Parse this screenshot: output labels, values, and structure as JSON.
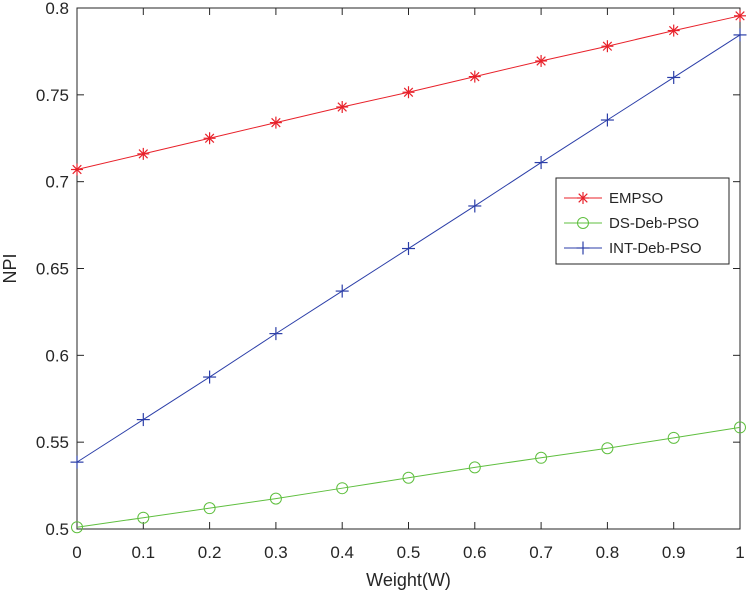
{
  "chart_data": {
    "type": "line",
    "xlabel": "Weight(W)",
    "ylabel": "NPI",
    "xlim": [
      0,
      1
    ],
    "ylim": [
      0.5,
      0.8
    ],
    "x": [
      0,
      0.1,
      0.2,
      0.3,
      0.4,
      0.5,
      0.6,
      0.7,
      0.8,
      0.9,
      1.0
    ],
    "xticks": [
      "0",
      "0.1",
      "0.2",
      "0.3",
      "0.4",
      "0.5",
      "0.6",
      "0.7",
      "0.8",
      "0.9",
      "1"
    ],
    "xtick_values": [
      0,
      0.1,
      0.2,
      0.3,
      0.4,
      0.5,
      0.6,
      0.7,
      0.8,
      0.9,
      1.0
    ],
    "yticks": [
      "0.5",
      "0.55",
      "0.6",
      "0.65",
      "0.7",
      "0.75",
      "0.8"
    ],
    "ytick_values": [
      0.5,
      0.55,
      0.6,
      0.65,
      0.7,
      0.75,
      0.8
    ],
    "grid": false,
    "legend_position": "right, slightly above middle",
    "series": [
      {
        "name": "EMPSO",
        "color": "#e8212a",
        "marker": "asterisk",
        "values": [
          0.707,
          0.716,
          0.725,
          0.734,
          0.743,
          0.7515,
          0.7605,
          0.7695,
          0.778,
          0.787,
          0.7955
        ]
      },
      {
        "name": "DS-Deb-PSO",
        "color": "#5fbf3f",
        "marker": "circle",
        "values": [
          0.501,
          0.5065,
          0.512,
          0.5175,
          0.5235,
          0.5295,
          0.5355,
          0.541,
          0.5465,
          0.5525,
          0.5585
        ]
      },
      {
        "name": "INT-Deb-PSO",
        "color": "#2b3ea8",
        "marker": "plus",
        "values": [
          0.5385,
          0.563,
          0.5875,
          0.6125,
          0.637,
          0.6615,
          0.686,
          0.711,
          0.7355,
          0.76,
          0.7845
        ]
      }
    ]
  }
}
